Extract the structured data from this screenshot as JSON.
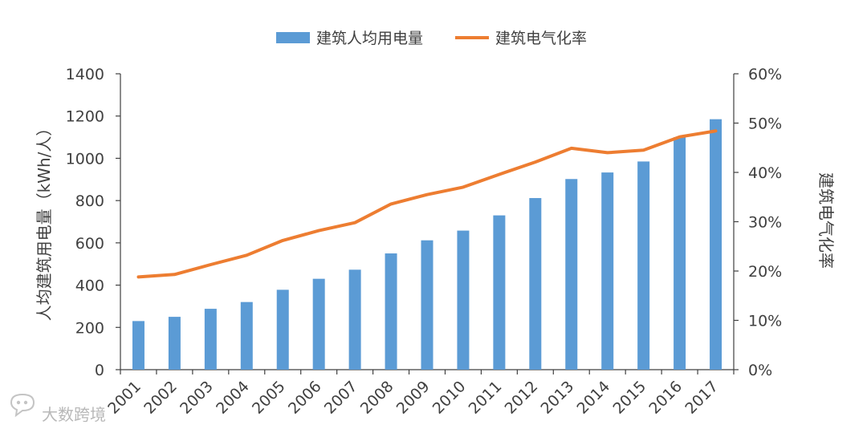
{
  "colors": {
    "bar": "#5B9BD5",
    "line": "#ED7D31",
    "axis": "#404040",
    "watermark": "#bdbdbd"
  },
  "watermark": {
    "text": "大数跨境",
    "icon": "chat-bubble-logo-icon"
  },
  "chart_data": {
    "type": "bar+line",
    "title": "",
    "categories": [
      "2001",
      "2002",
      "2003",
      "2004",
      "2005",
      "2006",
      "2007",
      "2008",
      "2009",
      "2010",
      "2011",
      "2012",
      "2013",
      "2014",
      "2015",
      "2016",
      "2017"
    ],
    "series": [
      {
        "name": "建筑人均用电量",
        "type": "bar",
        "axis": "left",
        "values": [
          230,
          250,
          288,
          320,
          378,
          430,
          473,
          550,
          612,
          658,
          730,
          812,
          902,
          933,
          985,
          1100,
          1185
        ]
      },
      {
        "name": "建筑电气化率",
        "type": "line",
        "axis": "right",
        "values": [
          0.188,
          0.193,
          0.213,
          0.232,
          0.262,
          0.282,
          0.298,
          0.336,
          0.355,
          0.37,
          0.396,
          0.421,
          0.449,
          0.44,
          0.445,
          0.472,
          0.484
        ]
      }
    ],
    "ylabel": "人均建筑用电量（kWh/人）",
    "ylabel_right": "建筑电气化率",
    "ylim": [
      0,
      1400
    ],
    "yticks": [
      0,
      200,
      400,
      600,
      800,
      1000,
      1200,
      1400
    ],
    "ylim_right": [
      0,
      0.6
    ],
    "yticks_right": [
      "0%",
      "10%",
      "20%",
      "30%",
      "40%",
      "50%",
      "60%"
    ],
    "legend": [
      "建筑人均用电量",
      "建筑电气化率"
    ],
    "legend_position": "top-center",
    "grid": false
  }
}
